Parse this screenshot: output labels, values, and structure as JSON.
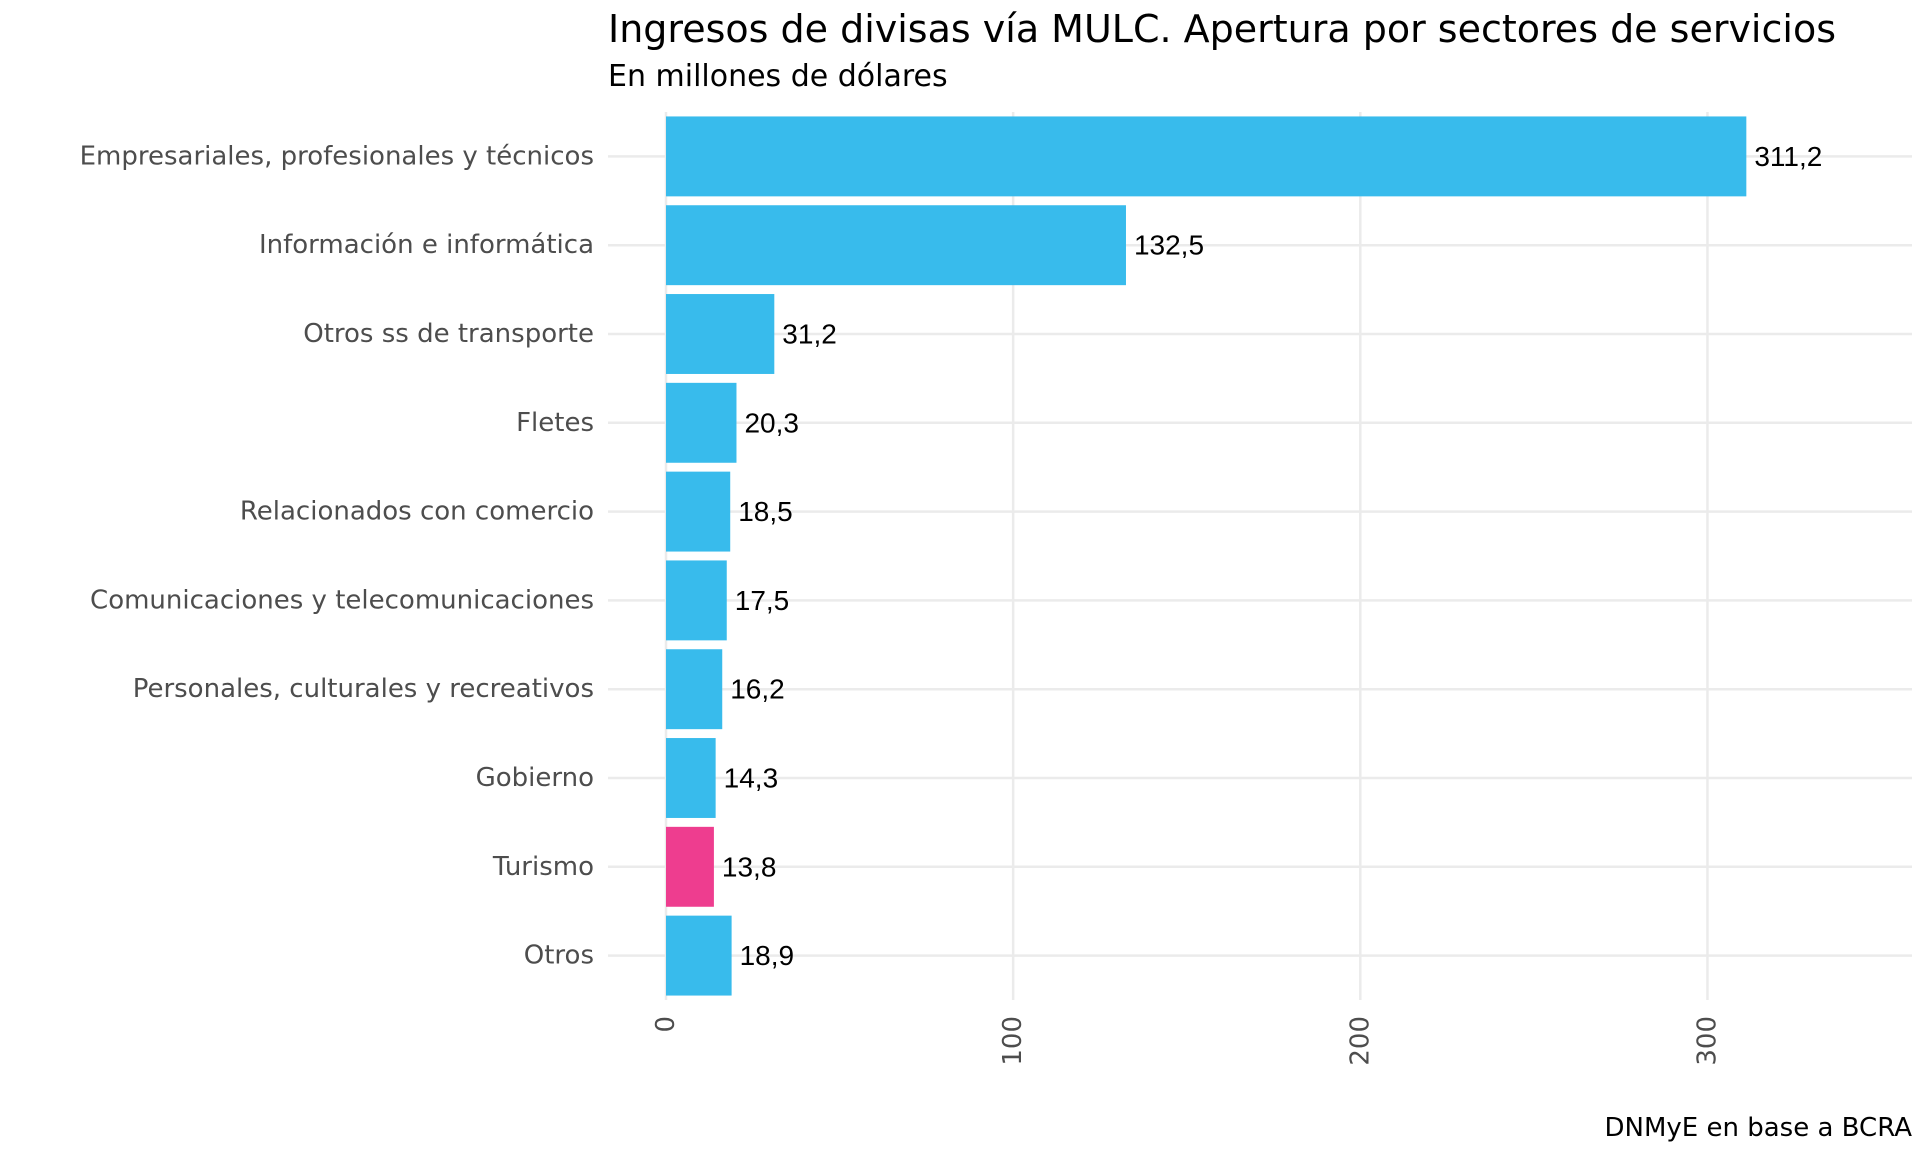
{
  "chart_data": {
    "type": "bar",
    "orientation": "horizontal",
    "title": "Ingresos de divisas vía MULC. Apertura por sectores de servicios",
    "subtitle": "En millones de dólares",
    "caption": "DNMyE en base a BCRA",
    "xlabel": "",
    "ylabel": "",
    "categories": [
      "Empresariales, profesionales y técnicos",
      "Información e informática",
      "Otros ss de transporte",
      "Fletes",
      "Relacionados con comercio",
      "Comunicaciones  y telecomunicaciones",
      "Personales, culturales y recreativos",
      "Gobierno",
      "Turismo",
      "Otros"
    ],
    "values": [
      311.2,
      132.5,
      31.2,
      20.3,
      18.5,
      17.5,
      16.2,
      14.3,
      13.8,
      18.9
    ],
    "value_labels": [
      "311,2",
      "132,5",
      "31,2",
      "20,3",
      "18,5",
      "17,5",
      "16,2",
      "14,3",
      "13,8",
      "18,9"
    ],
    "xlim": [
      -17,
      360
    ],
    "xticks": [
      0,
      100,
      200,
      300
    ],
    "xtick_labels": [
      "0",
      "100",
      "200",
      "300"
    ],
    "grid": true,
    "legend": "none",
    "colors": {
      "default": "#38bbec",
      "highlight": "#ee3d8f",
      "highlight_category": "Turismo"
    }
  }
}
